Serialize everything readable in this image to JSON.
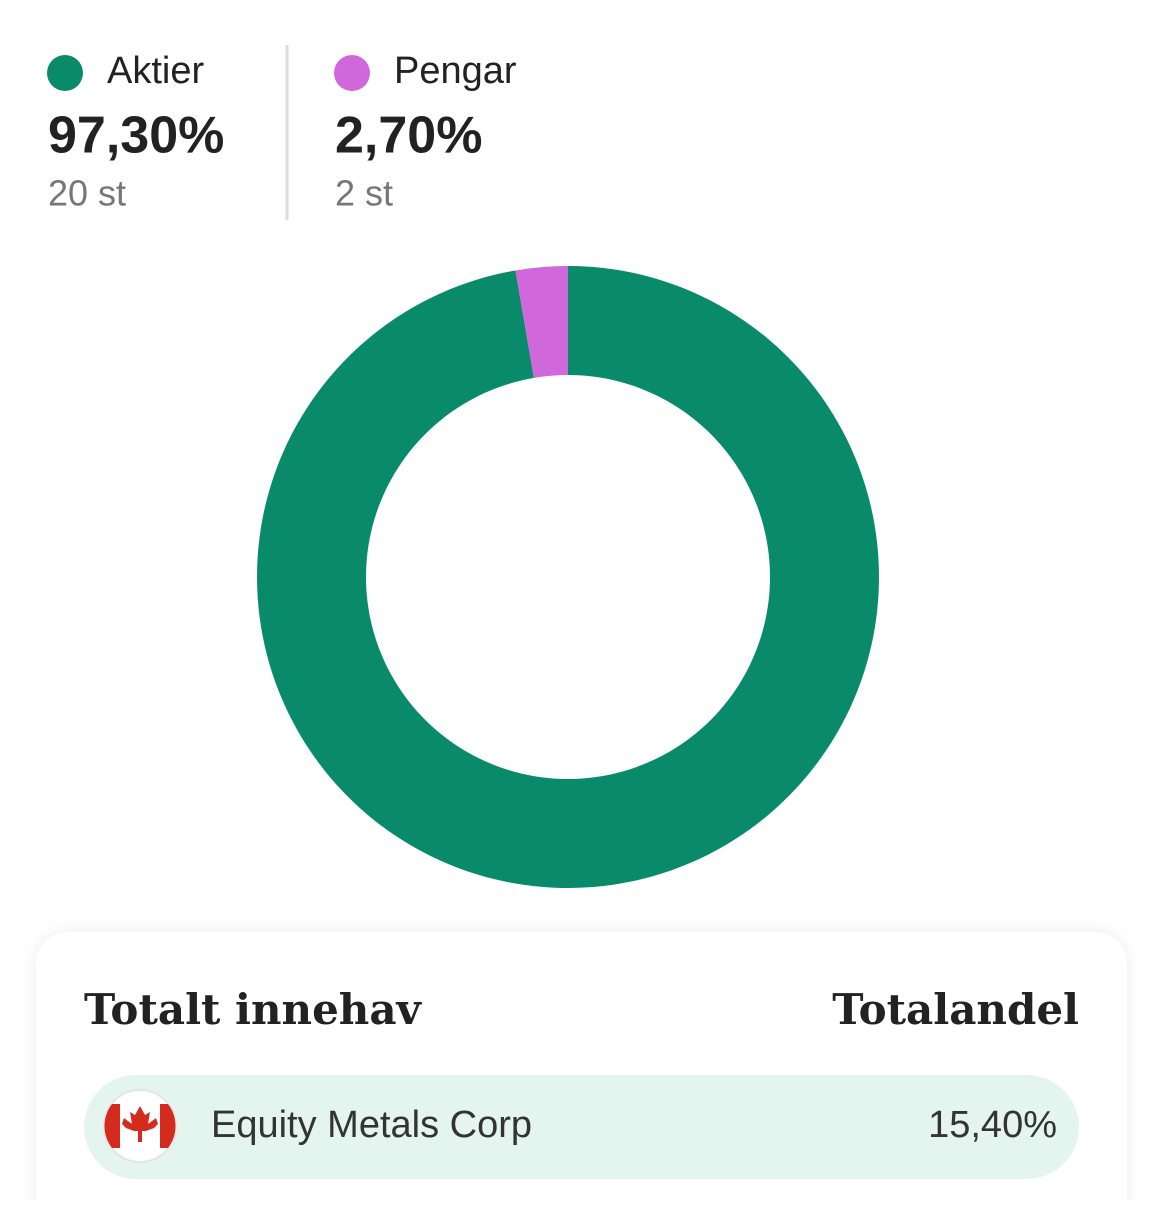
{
  "chart_data": {
    "type": "donut",
    "categories": [
      "Aktier",
      "Pengar"
    ],
    "values": [
      97.3,
      2.7
    ],
    "value_labels": [
      "97,30%",
      "2,70%"
    ],
    "counts": [
      "20 st",
      "2 st"
    ],
    "colors": [
      "#098b6b",
      "#d068dc"
    ]
  },
  "holdings": {
    "headers": [
      "Totalt innehav",
      "Totalandel"
    ],
    "rows": [
      {
        "name": "Equity Metals Corp",
        "share": "15,40%"
      }
    ]
  }
}
